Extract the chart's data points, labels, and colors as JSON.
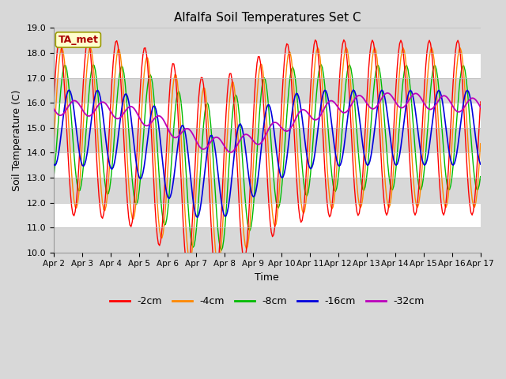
{
  "title": "Alfalfa Soil Temperatures Set C",
  "xlabel": "Time",
  "ylabel": "Soil Temperature (C)",
  "ylim": [
    10.0,
    19.0
  ],
  "yticks": [
    10.0,
    11.0,
    12.0,
    13.0,
    14.0,
    15.0,
    16.0,
    17.0,
    18.0,
    19.0
  ],
  "xtick_labels": [
    "Apr 2",
    "Apr 3",
    "Apr 4",
    "Apr 5",
    "Apr 6",
    "Apr 7",
    "Apr 8",
    "Apr 9",
    "Apr 10",
    "Apr 11",
    "Apr 12",
    "Apr 13",
    "Apr 14",
    "Apr 15",
    "Apr 16",
    "Apr 17"
  ],
  "background_color": "#d8d8d8",
  "plot_bg_color": "#d8d8d8",
  "white_band_color": "#f0f0f0",
  "annotation_text": "TA_met",
  "annotation_bg": "#ffffcc",
  "annotation_border": "#999900",
  "annotation_text_color": "#aa0000",
  "line_colors": {
    "-2cm": "#ff0000",
    "-4cm": "#ff8800",
    "-8cm": "#00bb00",
    "-16cm": "#0000dd",
    "-32cm": "#bb00bb"
  },
  "legend_labels": [
    "-2cm",
    "-4cm",
    "-8cm",
    "-16cm",
    "-32cm"
  ]
}
